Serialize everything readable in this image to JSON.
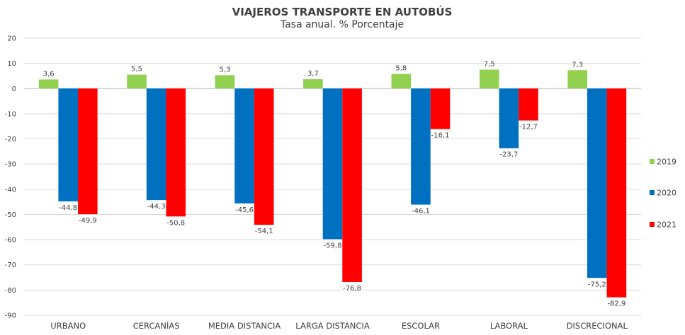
{
  "chart_data": {
    "type": "bar",
    "title": "VIAJEROS TRANSPORTE EN AUTOBÚS",
    "subtitle": "Tasa anual. % Porcentaje",
    "categories": [
      "URBANO",
      "CERCANÍAS",
      "MEDIA DISTANCIA",
      "LARGA DISTANCIA",
      "ESCOLAR",
      "LABORAL",
      "DISCRECIONAL"
    ],
    "series": [
      {
        "name": "2019",
        "color": "#92d050",
        "values": [
          3.6,
          5.5,
          5.3,
          3.7,
          5.8,
          7.5,
          7.3
        ],
        "labels": [
          "3,6",
          "5,5",
          "5,3",
          "3,7",
          "5,8",
          "7,5",
          "7,3"
        ]
      },
      {
        "name": "2020",
        "color": "#0070c0",
        "values": [
          -44.8,
          -44.3,
          -45.6,
          -59.8,
          -46.1,
          -23.7,
          -75.2
        ],
        "labels": [
          "-44,8",
          "-44,3",
          "-45,6",
          "-59,8",
          "-46,1",
          "-23,7",
          "-75,2"
        ]
      },
      {
        "name": "2021",
        "color": "#ff0000",
        "values": [
          -49.9,
          -50.8,
          -54.1,
          -76.8,
          -16.1,
          -12.7,
          -82.9
        ],
        "labels": [
          "-49,9",
          "-50,8",
          "-54,1",
          "-76,8",
          "-16,1",
          "-12,7",
          "-82,9"
        ]
      }
    ],
    "ylim": [
      -90,
      20
    ],
    "yticks": [
      20,
      10,
      0,
      -10,
      -20,
      -30,
      -40,
      -50,
      -60,
      -70,
      -80,
      -90
    ],
    "grid": true,
    "legend_position": "right"
  }
}
